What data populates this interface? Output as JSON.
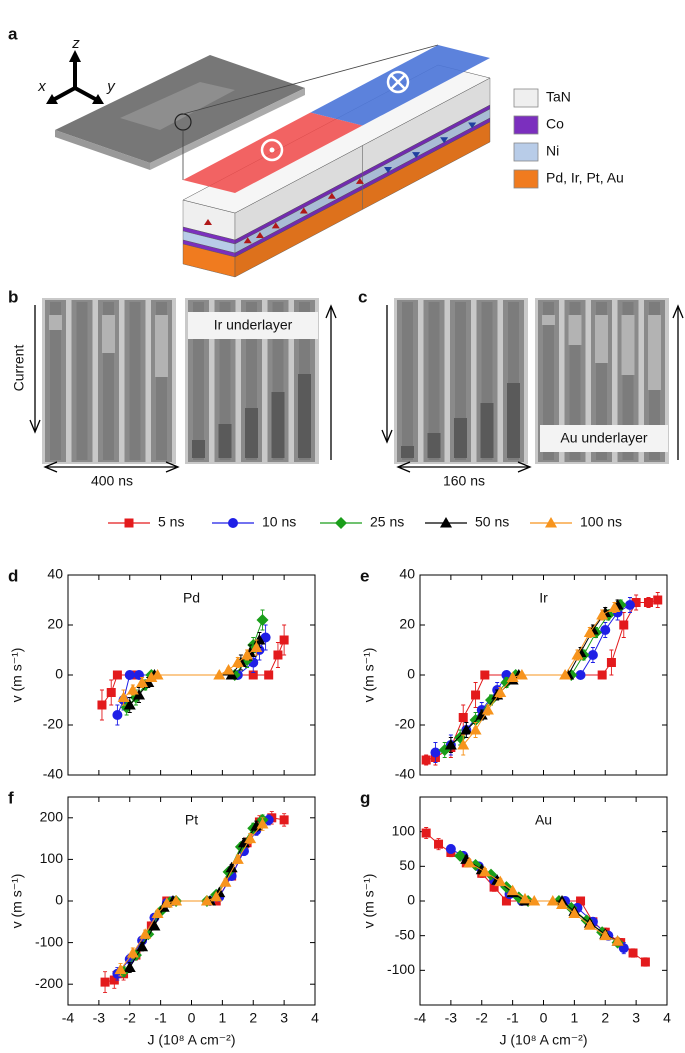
{
  "diagram": {
    "panel_label": "a",
    "axes": {
      "x": "x",
      "y": "y",
      "z": "z"
    },
    "layers": [
      {
        "label": "TaN",
        "color": "#efefef"
      },
      {
        "label": "Co",
        "color": "#7b2fbe"
      },
      {
        "label": "Ni",
        "color": "#b8cce8"
      },
      {
        "label": "Pd, Ir, Pt, Au",
        "color": "#f07b1f"
      }
    ]
  },
  "images": [
    {
      "panel_label": "b",
      "current_label": "Current",
      "overlay": "Ir underlayer",
      "duration": "400 ns"
    },
    {
      "panel_label": "c",
      "overlay": "Au underlayer",
      "duration": "160 ns"
    }
  ],
  "legend": {
    "entries": [
      {
        "name": "5 ns",
        "color": "#e31a1c",
        "marker": "square"
      },
      {
        "name": "10 ns",
        "color": "#1f1fe6",
        "marker": "circle"
      },
      {
        "name": "25 ns",
        "color": "#1a9e1a",
        "marker": "diamond"
      },
      {
        "name": "50 ns",
        "color": "#000000",
        "marker": "triangle"
      },
      {
        "name": "100 ns",
        "color": "#f7941d",
        "marker": "triangle"
      }
    ]
  },
  "chart_data": [
    {
      "type": "scatter",
      "panel": "d",
      "annotation": "Pd",
      "ylabel": "v (m s⁻¹)",
      "xlim": [
        -4,
        4
      ],
      "ylim": [
        -40,
        40
      ],
      "xticks": [
        -4,
        -3,
        -2,
        -1,
        0,
        1,
        2,
        3,
        4
      ],
      "yticks": [
        -40,
        -20,
        0,
        20,
        40
      ],
      "xtick_labels": false,
      "series": [
        {
          "x": [
            -2.9,
            -2.6,
            -2.4,
            -1.9,
            2.0,
            2.5,
            2.8,
            3.0
          ],
          "values": [
            -12,
            -7,
            0,
            0,
            0,
            0,
            8,
            14
          ],
          "errors": [
            6,
            5,
            0,
            0,
            0,
            0,
            5,
            6
          ]
        },
        {
          "x": [
            -2.4,
            -2.2,
            -2.0,
            -1.7,
            1.5,
            2.0,
            2.2,
            2.4
          ],
          "values": [
            -16,
            -10,
            0,
            0,
            0,
            5,
            10,
            15
          ],
          "errors": [
            4,
            4,
            0,
            0,
            0,
            4,
            4,
            5
          ]
        },
        {
          "x": [
            -2.1,
            -1.8,
            -1.5,
            -1.3,
            1.4,
            1.8,
            2.0,
            2.3
          ],
          "values": [
            -13,
            -9,
            -4,
            0,
            0,
            6,
            12,
            22
          ],
          "errors": [
            3,
            3,
            2,
            0,
            0,
            3,
            3,
            4
          ]
        },
        {
          "x": [
            -2.0,
            -1.7,
            -1.4,
            -1.2,
            1.3,
            1.6,
            1.9,
            2.2
          ],
          "values": [
            -12,
            -8,
            -3,
            0,
            0,
            5,
            9,
            14
          ],
          "errors": [
            3,
            3,
            2,
            0,
            0,
            3,
            3,
            3
          ]
        },
        {
          "x": [
            -2.2,
            -1.9,
            -1.6,
            -1.3,
            -1.1,
            0.9,
            1.2,
            1.5,
            1.8,
            2.1
          ],
          "values": [
            -9,
            -6,
            -3,
            -1,
            0,
            0,
            2,
            5,
            8,
            11
          ],
          "errors": [
            3,
            2,
            2,
            1,
            0,
            0,
            1,
            2,
            2,
            3
          ]
        }
      ]
    },
    {
      "type": "scatter",
      "panel": "e",
      "annotation": "Ir",
      "ylabel": "v (m s⁻¹)",
      "xlim": [
        -4,
        4
      ],
      "ylim": [
        -40,
        40
      ],
      "xticks": [
        -4,
        -3,
        -2,
        -1,
        0,
        1,
        2,
        3,
        4
      ],
      "yticks": [
        -40,
        -20,
        0,
        20,
        40
      ],
      "xtick_labels": false,
      "series": [
        {
          "x": [
            -3.8,
            -3.5,
            -3.0,
            -2.6,
            -2.2,
            -1.9,
            1.9,
            2.2,
            2.6,
            3.0,
            3.4,
            3.7
          ],
          "values": [
            -34,
            -33,
            -29,
            -17,
            -8,
            0,
            0,
            5,
            20,
            29,
            29,
            30
          ],
          "errors": [
            2,
            3,
            4,
            5,
            5,
            0,
            0,
            5,
            5,
            3,
            2,
            3
          ]
        },
        {
          "x": [
            -3.5,
            -3.0,
            -2.5,
            -2.0,
            -1.5,
            -1.2,
            1.2,
            1.6,
            2.0,
            2.4,
            2.8
          ],
          "values": [
            -31,
            -28,
            -22,
            -14,
            -6,
            0,
            0,
            8,
            18,
            25,
            28
          ],
          "errors": [
            4,
            4,
            3,
            3,
            3,
            0,
            0,
            3,
            3,
            3,
            3
          ]
        },
        {
          "x": [
            -3.2,
            -2.7,
            -2.2,
            -1.7,
            -1.2,
            -0.9,
            0.9,
            1.3,
            1.7,
            2.1,
            2.5
          ],
          "values": [
            -30,
            -25,
            -18,
            -10,
            -3,
            0,
            0,
            8,
            17,
            24,
            28
          ],
          "errors": [
            3,
            3,
            3,
            2,
            2,
            0,
            0,
            2,
            2,
            2,
            2
          ]
        },
        {
          "x": [
            -3.0,
            -2.5,
            -2.0,
            -1.5,
            -1.0,
            -0.8,
            0.8,
            1.2,
            1.6,
            2.0,
            2.4
          ],
          "values": [
            -28,
            -22,
            -16,
            -8,
            -2,
            0,
            0,
            9,
            18,
            25,
            28
          ],
          "errors": [
            3,
            3,
            2,
            2,
            1,
            0,
            0,
            2,
            2,
            2,
            2
          ]
        },
        {
          "x": [
            -2.6,
            -2.2,
            -1.8,
            -1.4,
            -1.0,
            -0.7,
            0.7,
            1.1,
            1.5,
            1.9,
            2.3
          ],
          "values": [
            -28,
            -22,
            -14,
            -7,
            -1,
            0,
            0,
            8,
            17,
            24,
            27
          ],
          "errors": [
            4,
            3,
            2,
            2,
            1,
            0,
            0,
            2,
            2,
            2,
            2
          ]
        }
      ]
    },
    {
      "type": "scatter",
      "panel": "f",
      "annotation": "Pt",
      "ylabel": "v (m s⁻¹)",
      "xlabel": "J (10⁸ A cm⁻²)",
      "xlim": [
        -4,
        4
      ],
      "ylim": [
        -250,
        250
      ],
      "xticks": [
        -4,
        -3,
        -2,
        -1,
        0,
        1,
        2,
        3,
        4
      ],
      "yticks": [
        -200,
        -100,
        0,
        100,
        200
      ],
      "xtick_labels": true,
      "series": [
        {
          "x": [
            -2.8,
            -2.5,
            -2.2,
            -1.8,
            -1.3,
            -0.8,
            0.8,
            1.3,
            1.8,
            2.2,
            2.6,
            3.0
          ],
          "values": [
            -195,
            -190,
            -175,
            -130,
            -60,
            0,
            0,
            60,
            140,
            190,
            200,
            195
          ],
          "errors": [
            25,
            20,
            15,
            12,
            10,
            0,
            0,
            10,
            12,
            15,
            15,
            15
          ]
        },
        {
          "x": [
            -2.4,
            -2.0,
            -1.6,
            -1.2,
            -0.8,
            -0.6,
            0.6,
            0.9,
            1.3,
            1.7,
            2.1,
            2.5
          ],
          "values": [
            -175,
            -140,
            -95,
            -40,
            -5,
            0,
            0,
            10,
            60,
            120,
            170,
            195
          ],
          "errors": [
            15,
            12,
            10,
            8,
            5,
            0,
            0,
            5,
            8,
            10,
            12,
            12
          ]
        },
        {
          "x": [
            -2.2,
            -1.8,
            -1.4,
            -1.0,
            -0.7,
            -0.5,
            0.5,
            0.8,
            1.2,
            1.6,
            2.0,
            2.3
          ],
          "values": [
            -170,
            -130,
            -80,
            -25,
            -3,
            0,
            0,
            15,
            70,
            130,
            175,
            195
          ],
          "errors": [
            12,
            10,
            8,
            6,
            3,
            0,
            0,
            4,
            8,
            10,
            12,
            12
          ]
        },
        {
          "x": [
            -2.0,
            -1.6,
            -1.2,
            -0.9,
            -0.6,
            0.6,
            0.9,
            1.3,
            1.7,
            2.1
          ],
          "values": [
            -160,
            -110,
            -60,
            -15,
            0,
            0,
            20,
            80,
            140,
            180
          ],
          "errors": [
            12,
            10,
            8,
            5,
            0,
            0,
            5,
            8,
            10,
            12
          ]
        },
        {
          "x": [
            -2.3,
            -1.9,
            -1.5,
            -1.1,
            -0.8,
            -0.5,
            0.5,
            0.8,
            1.1,
            1.5,
            1.9,
            2.3
          ],
          "values": [
            -165,
            -125,
            -80,
            -30,
            -5,
            0,
            0,
            10,
            45,
            100,
            150,
            185
          ],
          "errors": [
            15,
            12,
            10,
            8,
            4,
            0,
            0,
            4,
            8,
            10,
            12,
            15
          ]
        }
      ]
    },
    {
      "type": "scatter",
      "panel": "g",
      "annotation": "Au",
      "ylabel": "v (m s⁻¹)",
      "xlabel": "J (10⁸ A cm⁻²)",
      "xlim": [
        -4,
        4
      ],
      "ylim": [
        -150,
        150
      ],
      "xticks": [
        -4,
        -3,
        -2,
        -1,
        0,
        1,
        2,
        3,
        4
      ],
      "yticks": [
        -100,
        -50,
        0,
        50,
        100
      ],
      "xtick_labels": true,
      "series": [
        {
          "x": [
            -3.8,
            -3.4,
            -3.0,
            -2.5,
            -2.0,
            -1.6,
            -1.2,
            1.2,
            1.6,
            2.0,
            2.5,
            2.9,
            3.3
          ],
          "values": [
            98,
            82,
            70,
            55,
            40,
            20,
            0,
            0,
            -30,
            -45,
            -60,
            -75,
            -88
          ],
          "errors": [
            8,
            8,
            6,
            6,
            6,
            6,
            0,
            0,
            6,
            6,
            6,
            6,
            6
          ]
        },
        {
          "x": [
            -3.0,
            -2.6,
            -2.1,
            -1.6,
            -1.1,
            -0.7,
            0.7,
            1.1,
            1.6,
            2.1,
            2.6
          ],
          "values": [
            75,
            65,
            50,
            30,
            10,
            0,
            0,
            -10,
            -30,
            -50,
            -68
          ],
          "errors": [
            6,
            6,
            5,
            5,
            4,
            0,
            0,
            4,
            5,
            5,
            8
          ]
        },
        {
          "x": [
            -2.7,
            -2.2,
            -1.7,
            -1.2,
            -0.8,
            -0.5,
            0.5,
            0.9,
            1.4,
            1.9,
            2.4
          ],
          "values": [
            65,
            52,
            38,
            20,
            5,
            0,
            0,
            -10,
            -28,
            -45,
            -60
          ],
          "errors": [
            5,
            5,
            4,
            4,
            3,
            0,
            0,
            3,
            4,
            5,
            5
          ]
        },
        {
          "x": [
            -2.5,
            -2.0,
            -1.5,
            -1.0,
            -0.6,
            0.6,
            1.0,
            1.5,
            2.0,
            2.4
          ],
          "values": [
            60,
            45,
            30,
            12,
            0,
            0,
            -15,
            -32,
            -48,
            -58
          ],
          "errors": [
            5,
            5,
            4,
            3,
            0,
            0,
            3,
            4,
            5,
            5
          ]
        },
        {
          "x": [
            -2.4,
            -1.9,
            -1.4,
            -1.0,
            -0.6,
            -0.3,
            0.3,
            0.6,
            1.0,
            1.5,
            2.0,
            2.4
          ],
          "values": [
            55,
            42,
            28,
            15,
            3,
            0,
            0,
            -5,
            -18,
            -35,
            -50,
            -58
          ],
          "errors": [
            5,
            5,
            4,
            3,
            2,
            0,
            0,
            2,
            3,
            4,
            5,
            5
          ]
        }
      ]
    }
  ]
}
